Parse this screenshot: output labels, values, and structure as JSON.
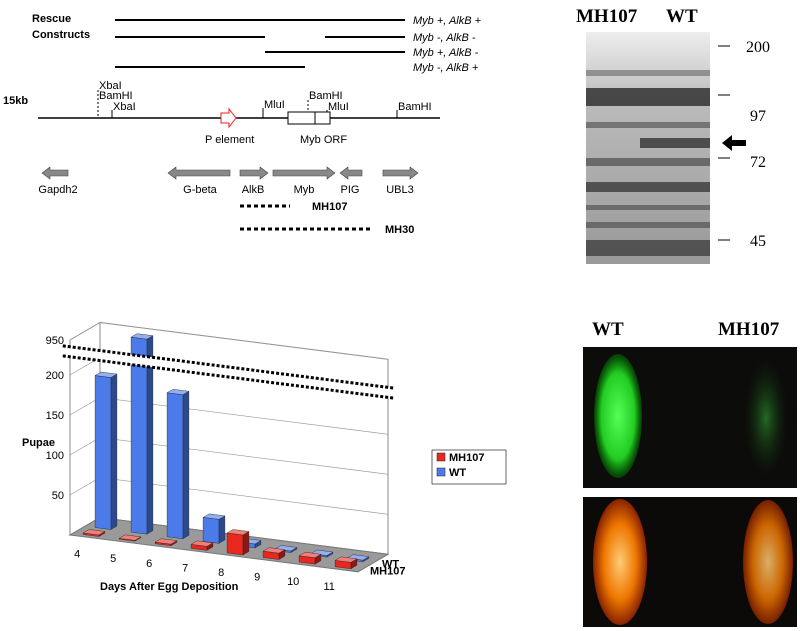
{
  "diagram": {
    "rescue_label": [
      "Rescue",
      "Constructs"
    ],
    "constructs": [
      "Myb +, AlkB +",
      "Myb -, AlkB -",
      "Myb +, AlkB -",
      "Myb -, AlkB +"
    ],
    "scale_label": "15kb",
    "sites": [
      "XbaI",
      "BamHI",
      "XbaI",
      "MluI",
      "BamHI",
      "MluI",
      "BamHI"
    ],
    "features": [
      "P element",
      "Myb ORF"
    ],
    "genes": [
      "Gapdh2",
      "G-beta",
      "AlkB",
      "Myb",
      "PIG",
      "UBL3"
    ],
    "deletions": [
      "MH107",
      "MH30"
    ]
  },
  "blot": {
    "lanes": [
      "MH107",
      "WT"
    ],
    "markers": [
      "200",
      "97",
      "72",
      "45"
    ]
  },
  "fluorescence": {
    "labels": [
      "WT",
      "MH107"
    ]
  },
  "chart_data": {
    "type": "bar",
    "y_label": "Pupae",
    "x_label": "Days After Egg Deposition",
    "categories": [
      "4",
      "5",
      "6",
      "7",
      "8",
      "9",
      "10",
      "11"
    ],
    "series": [
      {
        "name": "MH107",
        "color": "#e8281e",
        "values": [
          2,
          1,
          2,
          5,
          25,
          8,
          8,
          8
        ]
      },
      {
        "name": "WT",
        "color": "#4a7be8",
        "values": [
          190,
          950,
          180,
          30,
          5,
          2,
          2,
          2
        ]
      }
    ],
    "ylim": [
      0,
      950
    ],
    "yticks": [
      50,
      100,
      150,
      200,
      950
    ],
    "grid": true
  }
}
